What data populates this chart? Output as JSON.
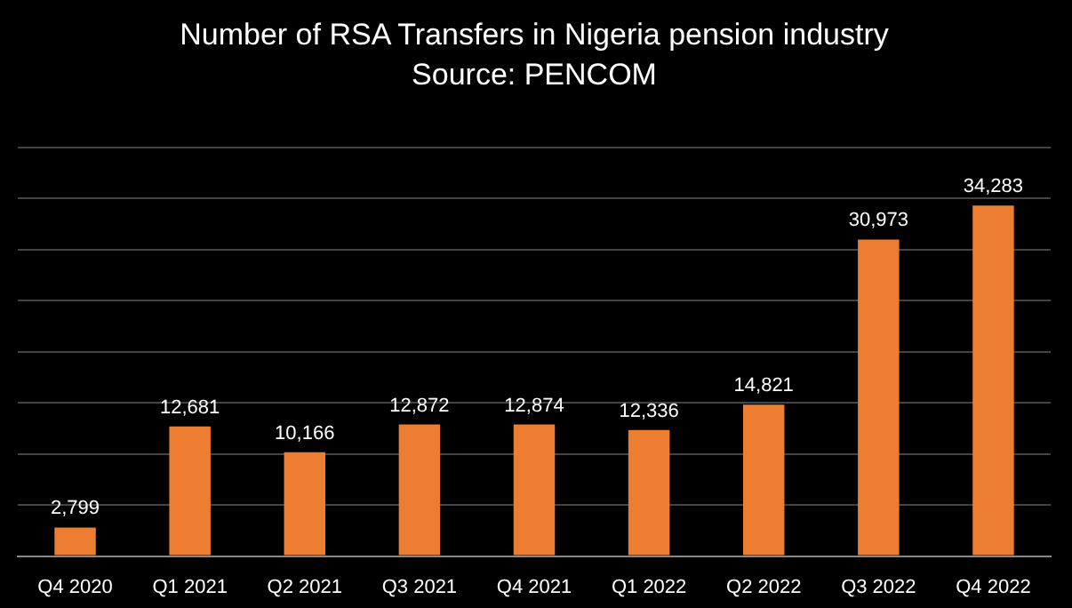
{
  "chart_data": {
    "type": "bar",
    "title": "Number of RSA Transfers in Nigeria pension industry",
    "subtitle": "Source: PENCOM",
    "categories": [
      "Q4 2020",
      "Q1 2021",
      "Q2 2021",
      "Q3 2021",
      "Q4 2021",
      "Q1 2022",
      "Q2 2022",
      "Q3 2022",
      "Q4 2022"
    ],
    "values": [
      2799,
      12681,
      10166,
      12872,
      12874,
      12336,
      14821,
      30973,
      34283
    ],
    "color": "#ed7d31",
    "data_labels": true,
    "value_labels": [
      "2,799",
      "12,681",
      "10,166",
      "12,872",
      "12,874",
      "12,336",
      "14,821",
      "30,973",
      "34,283"
    ],
    "ylim": [
      0,
      40000
    ],
    "yticks": [
      {
        "value": 0,
        "label": null
      },
      {
        "value": 5000,
        "label": null
      },
      {
        "value": 10000,
        "label": null
      },
      {
        "value": 15000,
        "label": null
      },
      {
        "value": 20000,
        "label": null
      },
      {
        "value": 25000,
        "label": null
      },
      {
        "value": 30000,
        "label": null
      },
      {
        "value": 35000,
        "label": null
      },
      {
        "value": 40000,
        "label": null
      }
    ],
    "grid": "y",
    "tick_labels": "x",
    "legend": false
  }
}
